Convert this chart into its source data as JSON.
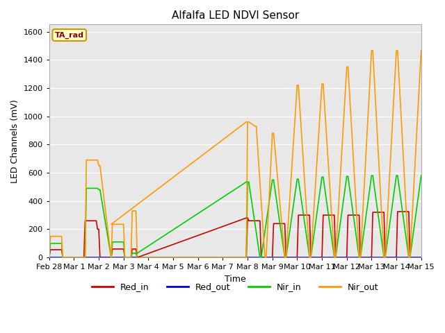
{
  "title": "Alfalfa LED NDVI Sensor",
  "ylabel": "LED Channels (mV)",
  "xlabel": "Time",
  "annotation": "TA_rad",
  "bg_color": "#e8e8e8",
  "ylim": [
    0,
    1650
  ],
  "legend": [
    "Red_in",
    "Red_out",
    "Nir_in",
    "Nir_out"
  ],
  "legend_colors": [
    "#cc0000",
    "#0000cc",
    "#00cc00",
    "#ff9900"
  ],
  "series": {
    "Red_in": {
      "color": "#cc0000",
      "lw": 1.2,
      "x": [
        0.0,
        0.05,
        0.5,
        0.55,
        1.0,
        1.4,
        1.45,
        1.9,
        1.95,
        2.0,
        2.05,
        2.5,
        2.55,
        3.0,
        3.05,
        3.3,
        3.35,
        3.5,
        3.55,
        7.95,
        8.0,
        8.05,
        8.5,
        8.55,
        9.0,
        9.05,
        9.5,
        9.55,
        10.0,
        10.05,
        10.5,
        10.55,
        11.0,
        11.05,
        11.5,
        11.55,
        12.0,
        12.05,
        12.5,
        12.55,
        13.0,
        13.05,
        13.5,
        13.55,
        14.0,
        14.05,
        14.5,
        14.55,
        15.0
      ],
      "y": [
        0,
        55,
        55,
        0,
        0,
        0,
        260,
        260,
        200,
        200,
        0,
        0,
        60,
        60,
        0,
        0,
        60,
        60,
        0,
        0,
        280,
        260,
        260,
        0,
        0,
        240,
        240,
        0,
        0,
        300,
        300,
        0,
        0,
        300,
        300,
        0,
        0,
        300,
        300,
        0,
        0,
        320,
        320,
        0,
        0,
        325,
        325,
        0,
        0
      ]
    },
    "Red_out": {
      "color": "#0000cc",
      "lw": 1.2,
      "x": [
        0.0,
        15.0
      ],
      "y": [
        0,
        0
      ]
    },
    "Nir_in": {
      "color": "#00cc00",
      "lw": 1.2,
      "x": [
        0.0,
        0.05,
        0.5,
        0.55,
        1.0,
        1.45,
        1.5,
        1.95,
        2.0,
        2.05,
        2.5,
        2.55,
        3.0,
        3.05,
        3.3,
        3.35,
        3.5,
        3.55,
        3.9,
        3.95,
        7.95,
        8.0,
        8.05,
        8.5,
        8.55,
        9.0,
        9.05,
        9.5,
        9.55,
        10.0,
        10.05,
        10.5,
        10.55,
        11.0,
        11.05,
        11.5,
        11.55,
        12.0,
        12.05,
        12.5,
        12.55,
        13.0,
        13.05,
        13.5,
        13.55,
        14.0,
        14.05,
        14.5,
        14.55,
        15.0
      ],
      "y": [
        0,
        100,
        100,
        0,
        0,
        0,
        490,
        490,
        480,
        480,
        0,
        110,
        110,
        0,
        0,
        30,
        30,
        0,
        0,
        0,
        0,
        535,
        535,
        0,
        0,
        550,
        550,
        0,
        0,
        555,
        555,
        0,
        0,
        570,
        570,
        0,
        0,
        575,
        575,
        0,
        0,
        580,
        580,
        0,
        0,
        580,
        580,
        0,
        0,
        580
      ]
    },
    "Nir_out": {
      "color": "#ff9900",
      "lw": 1.2,
      "x": [
        0.0,
        0.05,
        0.5,
        0.55,
        1.0,
        1.45,
        1.5,
        1.95,
        2.0,
        2.05,
        2.5,
        2.55,
        3.0,
        3.05,
        3.3,
        3.35,
        3.5,
        3.55,
        7.95,
        8.0,
        8.05,
        8.3,
        8.35,
        8.7,
        8.75,
        9.0,
        9.05,
        9.5,
        9.55,
        10.0,
        10.05,
        10.5,
        10.55,
        11.0,
        11.05,
        11.5,
        11.55,
        12.0,
        12.05,
        12.5,
        12.55,
        13.0,
        13.05,
        13.5,
        13.55,
        14.0,
        14.05,
        14.5,
        14.55,
        15.0
      ],
      "y": [
        0,
        150,
        150,
        0,
        0,
        0,
        690,
        690,
        650,
        650,
        0,
        235,
        235,
        0,
        0,
        330,
        330,
        0,
        0,
        960,
        960,
        930,
        930,
        0,
        0,
        880,
        880,
        0,
        0,
        1220,
        1220,
        0,
        0,
        1230,
        1230,
        0,
        0,
        1350,
        1350,
        0,
        0,
        1465,
        1465,
        0,
        0,
        1465,
        1465,
        0,
        0,
        1465
      ]
    },
    "Nir_out_ramp": {
      "color": "#ff9900",
      "lw": 1.2,
      "x": [
        2.5,
        7.95
      ],
      "y": [
        235,
        960
      ]
    },
    "Nir_in_ramp": {
      "color": "#00cc00",
      "lw": 1.2,
      "x": [
        3.55,
        7.95
      ],
      "y": [
        30,
        535
      ]
    },
    "Red_in_ramp": {
      "color": "#cc0000",
      "lw": 1.2,
      "x": [
        3.55,
        7.95
      ],
      "y": [
        0,
        280
      ]
    }
  },
  "xtick_labels": [
    "Feb 28",
    "Mar 1",
    "Mar 2",
    "Mar 3",
    "Mar 4",
    "Mar 5",
    "Mar 6",
    "Mar 7",
    "Mar 8",
    "Mar 9",
    "Mar 10",
    "Mar 11",
    "Mar 12",
    "Mar 13",
    "Mar 14",
    "Mar 15"
  ],
  "xtick_positions": [
    0,
    1,
    2,
    3,
    4,
    5,
    6,
    7,
    8,
    9,
    10,
    11,
    12,
    13,
    14,
    15
  ],
  "ytick_labels": [
    "0",
    "200",
    "400",
    "600",
    "800",
    "1000",
    "1200",
    "1400",
    "1600"
  ],
  "ytick_positions": [
    0,
    200,
    400,
    600,
    800,
    1000,
    1200,
    1400,
    1600
  ]
}
